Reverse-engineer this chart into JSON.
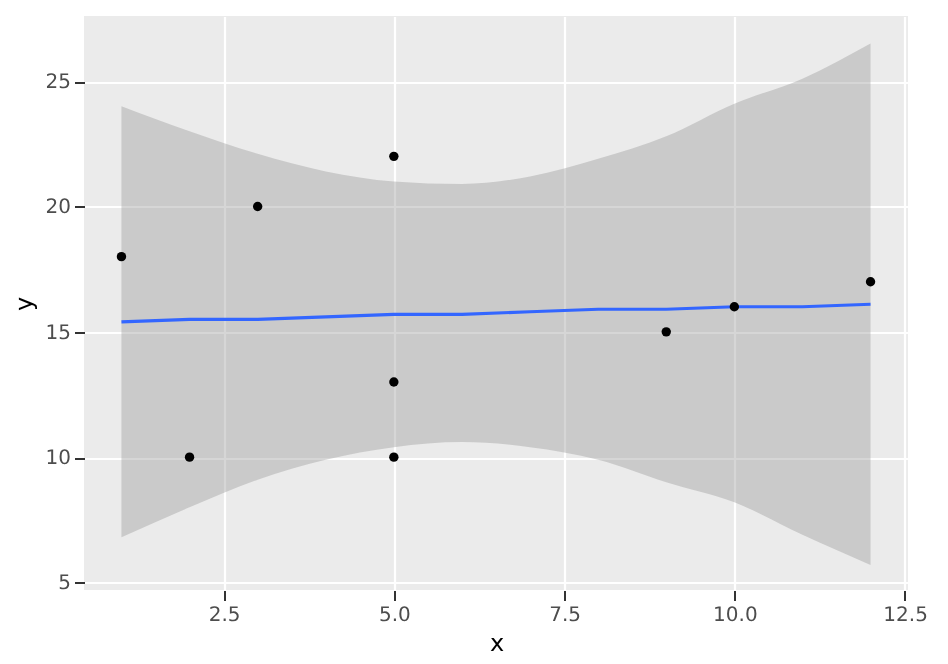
{
  "chart_data": {
    "type": "scatter",
    "xlabel": "x",
    "ylabel": "y",
    "series": [
      {
        "color": "#000000",
        "marker": "circle",
        "x": [
          1,
          2,
          3,
          5,
          5,
          5,
          9,
          10,
          12
        ],
        "values": [
          18,
          10,
          20,
          22,
          13,
          10,
          15,
          16,
          17
        ]
      },
      {
        "type": "line",
        "color": "#3366ff",
        "x": [
          1,
          2,
          3,
          4,
          5,
          6,
          7,
          8,
          9,
          10,
          11,
          12
        ],
        "values": [
          15.4,
          15.5,
          15.5,
          15.6,
          15.7,
          15.7,
          15.8,
          15.9,
          15.9,
          16.0,
          16.0,
          16.1
        ],
        "lower": [
          6.8,
          8.0,
          9.1,
          9.9,
          10.4,
          10.6,
          10.4,
          9.9,
          9.0,
          8.2,
          6.9,
          5.7
        ],
        "upper": [
          24.0,
          23.0,
          22.1,
          21.4,
          21.0,
          20.9,
          21.2,
          21.9,
          22.8,
          24.1,
          25.1,
          26.5
        ]
      }
    ],
    "xlim": [
      0.45,
      12.55
    ],
    "ylim": [
      4.7,
      27.6
    ],
    "xticks": [
      2.5,
      {
        "value": 5,
        "label": "5.0"
      },
      7.5,
      {
        "value": 10,
        "label": "10.0"
      },
      12.5
    ],
    "yticks": [
      5,
      10,
      15,
      20,
      25
    ],
    "grid": true
  }
}
